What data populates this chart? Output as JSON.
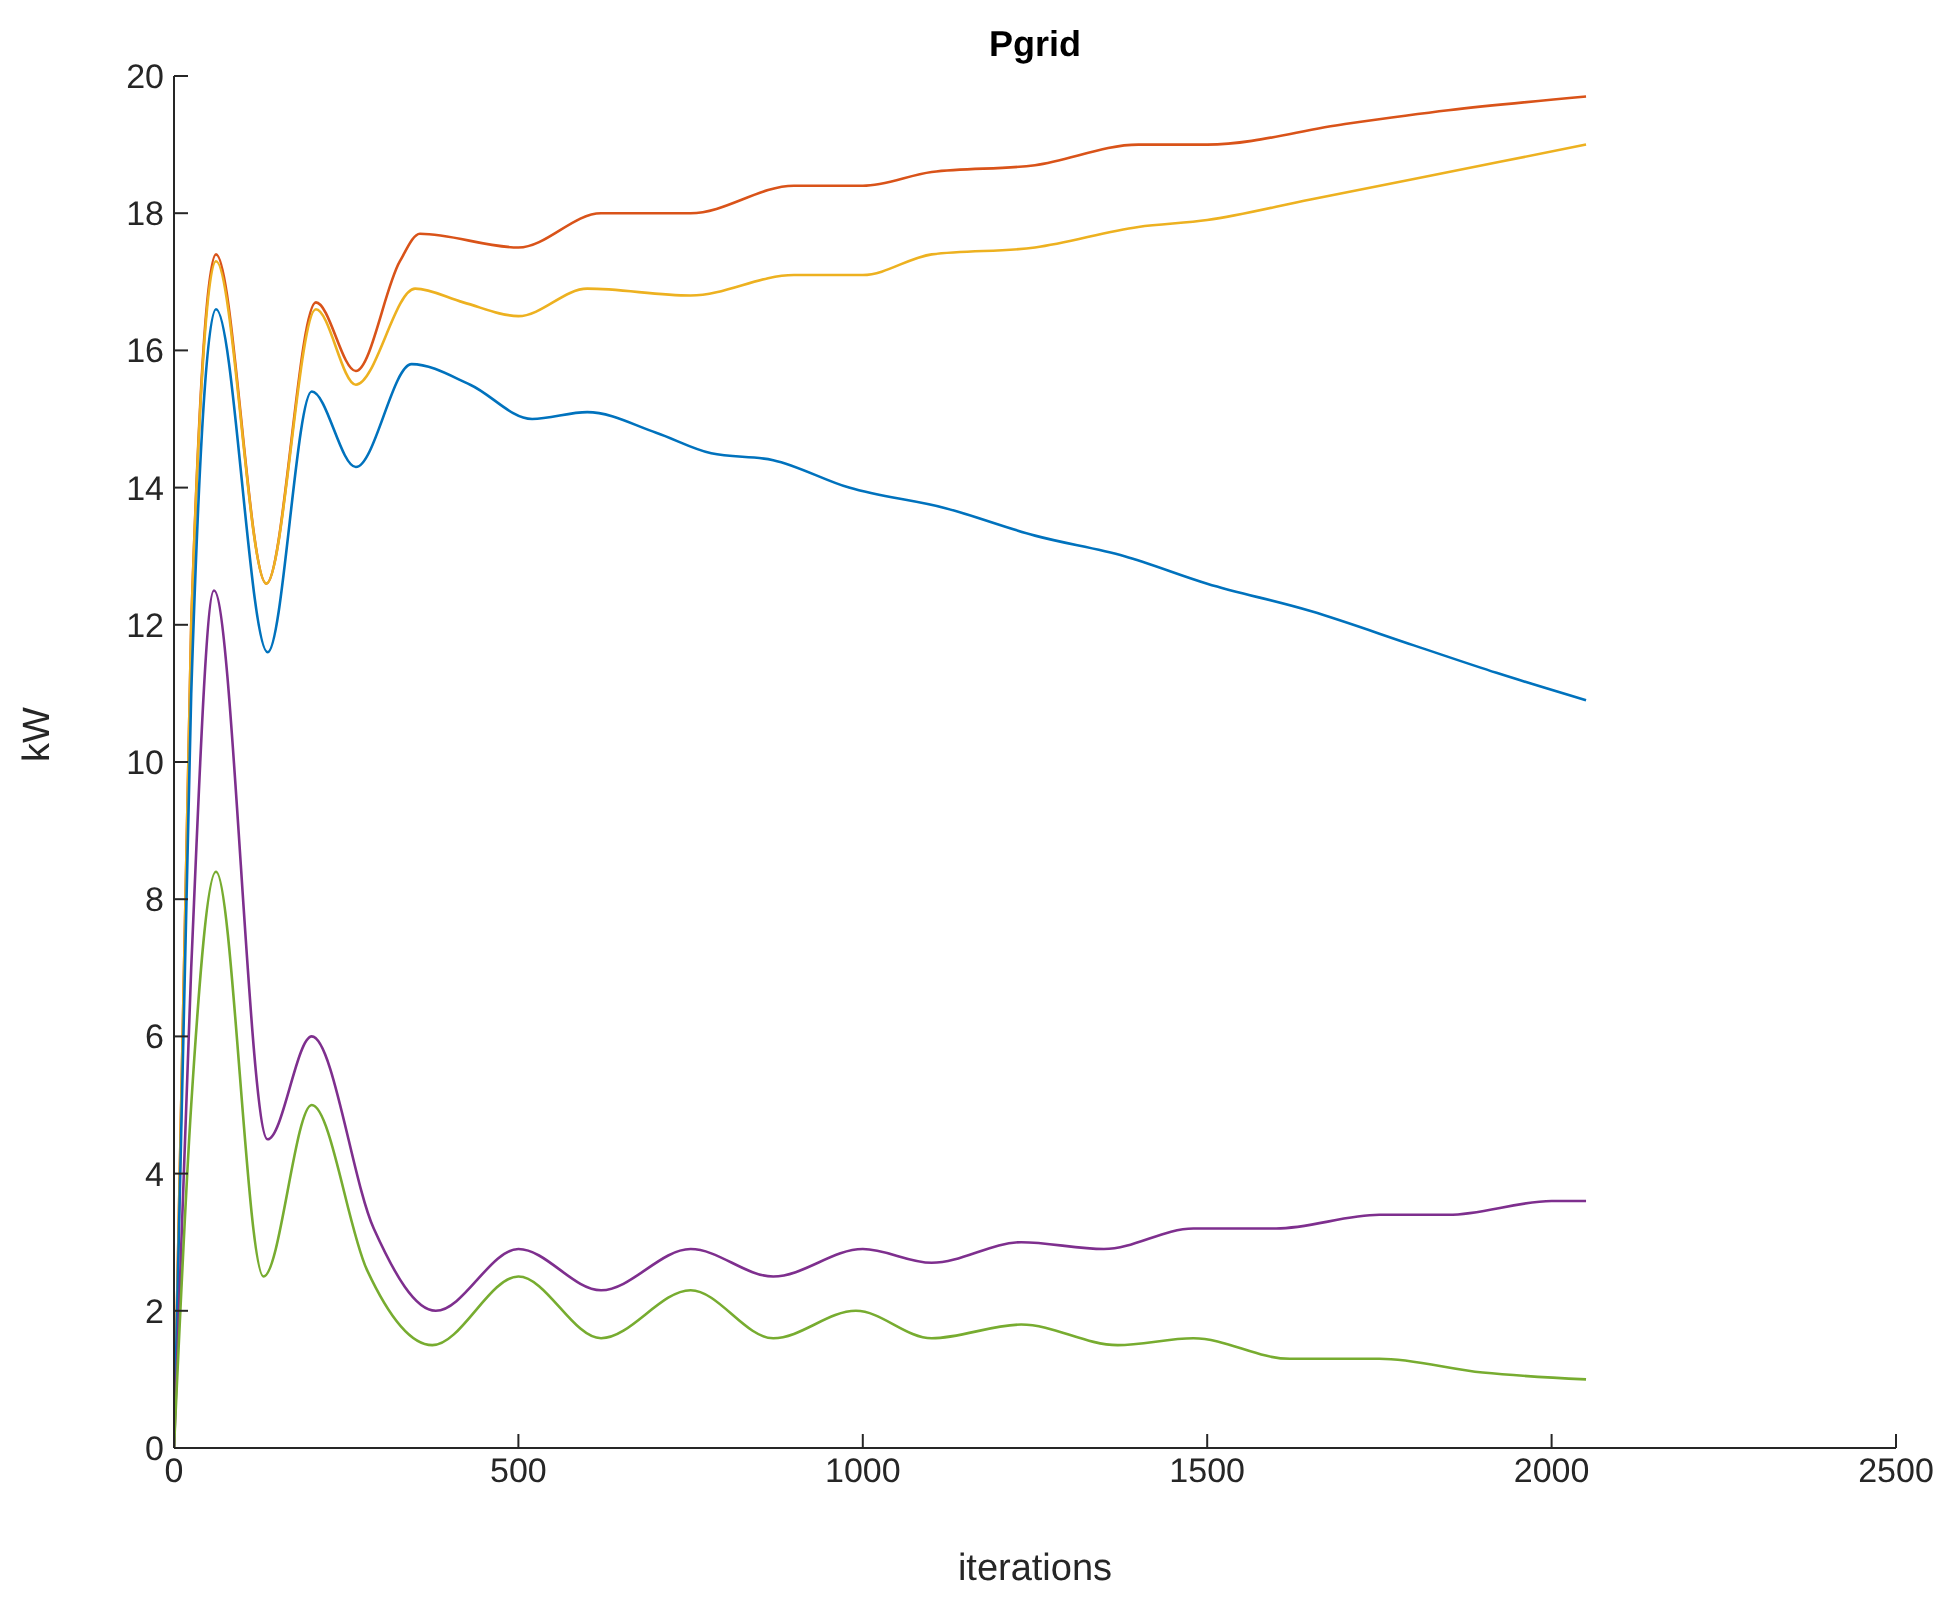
{
  "chart_data": {
    "type": "line",
    "title": "Pgrid",
    "xlabel": "iterations",
    "ylabel": "kW",
    "xlim": [
      0,
      2500
    ],
    "xticks": [
      0,
      500,
      1000,
      1500,
      2000,
      2500
    ],
    "ylim": [
      0,
      20
    ],
    "yticks": [
      0,
      2,
      4,
      6,
      8,
      10,
      12,
      14,
      16,
      18,
      20
    ],
    "grid": false,
    "legend": false,
    "marker": "none",
    "line_style": "solid",
    "series": [
      {
        "color": "#d95319",
        "x": [
          0,
          25,
          61,
          134,
          206,
          264,
          328,
          357,
          500,
          620,
          750,
          900,
          1000,
          1100,
          1250,
          1400,
          1500,
          1700,
          1850,
          2050
        ],
        "values": [
          0,
          12,
          17.4,
          12.6,
          16.7,
          15.7,
          17.3,
          17.7,
          17.5,
          18.0,
          18.0,
          18.4,
          18.4,
          18.6,
          18.7,
          19.0,
          19.0,
          19.3,
          19.5,
          19.7
        ]
      },
      {
        "color": "#edb120",
        "x": [
          0,
          25,
          61,
          134,
          206,
          264,
          350,
          420,
          500,
          600,
          750,
          900,
          1000,
          1100,
          1250,
          1400,
          1500,
          1650,
          1800,
          2050
        ],
        "values": [
          0,
          12,
          17.3,
          12.6,
          16.6,
          15.5,
          16.9,
          16.7,
          16.5,
          16.9,
          16.8,
          17.1,
          17.1,
          17.4,
          17.5,
          17.8,
          17.9,
          18.2,
          18.5,
          19.0
        ]
      },
      {
        "color": "#0072bd",
        "x": [
          0,
          25,
          61,
          136,
          200,
          264,
          345,
          430,
          520,
          600,
          700,
          780,
          870,
          980,
          1120,
          1250,
          1380,
          1500,
          1650,
          1800,
          1920,
          2050
        ],
        "values": [
          0,
          11,
          16.6,
          11.6,
          15.4,
          14.3,
          15.8,
          15.5,
          15.0,
          15.1,
          14.8,
          14.5,
          14.4,
          14.0,
          13.7,
          13.3,
          13.0,
          12.6,
          12.2,
          11.7,
          11.3,
          10.9
        ]
      },
      {
        "color": "#7e2f8e",
        "x": [
          0,
          25,
          58,
          136,
          200,
          290,
          380,
          500,
          620,
          750,
          870,
          1000,
          1100,
          1230,
          1350,
          1480,
          1600,
          1750,
          1850,
          2000,
          2050
        ],
        "values": [
          0,
          7,
          12.5,
          4.5,
          6.0,
          3.2,
          2.0,
          2.9,
          2.3,
          2.9,
          2.5,
          2.9,
          2.7,
          3.0,
          2.9,
          3.2,
          3.2,
          3.4,
          3.4,
          3.6,
          3.6
        ]
      },
      {
        "color": "#77ac30",
        "x": [
          0,
          25,
          61,
          130,
          200,
          280,
          375,
          500,
          620,
          750,
          870,
          990,
          1100,
          1230,
          1370,
          1480,
          1620,
          1750,
          1900,
          2050
        ],
        "values": [
          0,
          5,
          8.4,
          2.5,
          5.0,
          2.6,
          1.5,
          2.5,
          1.6,
          2.3,
          1.6,
          2.0,
          1.6,
          1.8,
          1.5,
          1.6,
          1.3,
          1.3,
          1.1,
          1.0
        ]
      }
    ]
  }
}
